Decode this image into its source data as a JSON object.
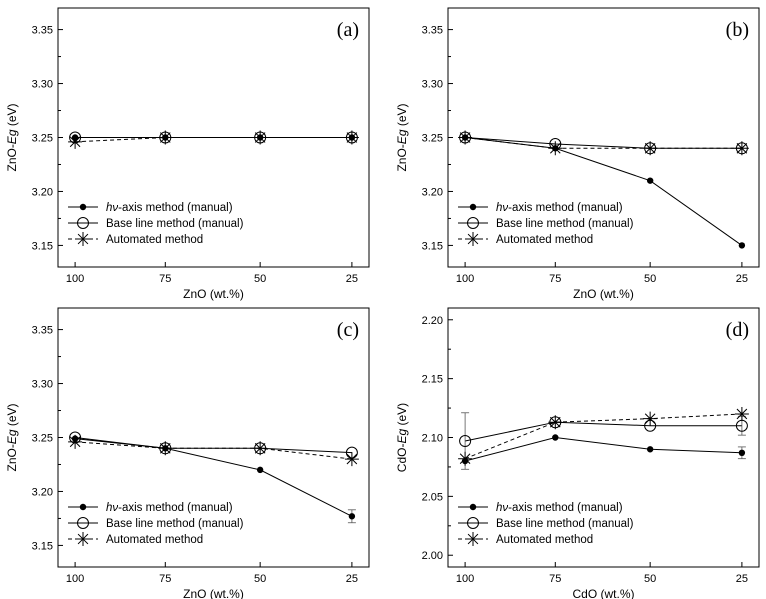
{
  "chart_data": [
    {
      "type": "line",
      "panel_label": "(a)",
      "x_categories": [
        "100",
        "75",
        "50",
        "25"
      ],
      "xlabel": "ZnO (wt.%)",
      "ylabel_prefix": "ZnO-",
      "ylabel_italic": "Eg",
      "ylabel_suffix": " (eV)",
      "ylim": [
        3.13,
        3.37
      ],
      "yticks": [
        "3.15",
        "3.20",
        "3.25",
        "3.30",
        "3.35"
      ],
      "series": [
        {
          "name": "hv-axis method (manual)",
          "values": [
            3.25,
            3.25,
            3.25,
            3.25
          ],
          "err": [
            0,
            0,
            0,
            0
          ]
        },
        {
          "name": "Base line method (manual)",
          "values": [
            3.25,
            3.25,
            3.25,
            3.25
          ],
          "err": [
            0,
            0,
            0,
            0
          ]
        },
        {
          "name": "Automated method",
          "values": [
            3.246,
            3.25,
            3.25,
            3.25
          ],
          "err": [
            0,
            0,
            0,
            0
          ]
        }
      ]
    },
    {
      "type": "line",
      "panel_label": "(b)",
      "x_categories": [
        "100",
        "75",
        "50",
        "25"
      ],
      "xlabel": "ZnO (wt.%)",
      "ylabel_prefix": "ZnO-",
      "ylabel_italic": "Eg",
      "ylabel_suffix": " (eV)",
      "ylim": [
        3.13,
        3.37
      ],
      "yticks": [
        "3.15",
        "3.20",
        "3.25",
        "3.30",
        "3.35"
      ],
      "series": [
        {
          "name": "hv-axis method (manual)",
          "values": [
            3.25,
            3.24,
            3.21,
            3.15
          ],
          "err": [
            0,
            0,
            0,
            0
          ]
        },
        {
          "name": "Base line method (manual)",
          "values": [
            3.25,
            3.244,
            3.24,
            3.24
          ],
          "err": [
            0,
            0,
            0,
            0
          ]
        },
        {
          "name": "Automated method",
          "values": [
            3.25,
            3.24,
            3.24,
            3.24
          ],
          "err": [
            0,
            0,
            0,
            0
          ]
        }
      ]
    },
    {
      "type": "line",
      "panel_label": "(c)",
      "x_categories": [
        "100",
        "75",
        "50",
        "25"
      ],
      "xlabel": "ZnO (wt.%)",
      "ylabel_prefix": "ZnO-",
      "ylabel_italic": "Eg",
      "ylabel_suffix": " (eV)",
      "ylim": [
        3.13,
        3.37
      ],
      "yticks": [
        "3.15",
        "3.20",
        "3.25",
        "3.30",
        "3.35"
      ],
      "series": [
        {
          "name": "hv-axis method (manual)",
          "values": [
            3.249,
            3.24,
            3.22,
            3.177
          ],
          "err": [
            0,
            0,
            0,
            0.006
          ]
        },
        {
          "name": "Base line method (manual)",
          "values": [
            3.25,
            3.24,
            3.24,
            3.236
          ],
          "err": [
            0,
            0,
            0,
            0
          ]
        },
        {
          "name": "Automated method",
          "values": [
            3.246,
            3.24,
            3.24,
            3.23
          ],
          "err": [
            0,
            0,
            0,
            0
          ]
        }
      ]
    },
    {
      "type": "line",
      "panel_label": "(d)",
      "x_categories": [
        "100",
        "75",
        "50",
        "25"
      ],
      "xlabel": "CdO (wt.%)",
      "ylabel_prefix": "CdO-",
      "ylabel_italic": "Eg",
      "ylabel_suffix": " (eV)",
      "ylim": [
        1.99,
        2.21
      ],
      "yticks": [
        "2.00",
        "2.05",
        "2.10",
        "2.15",
        "2.20"
      ],
      "series": [
        {
          "name": "hv-axis method (manual)",
          "values": [
            2.08,
            2.1,
            2.09,
            2.087
          ],
          "err": [
            0,
            0,
            0,
            0.005
          ]
        },
        {
          "name": "Base line method (manual)",
          "values": [
            2.097,
            2.113,
            2.11,
            2.11
          ],
          "err": [
            0.024,
            0,
            0,
            0.008
          ]
        },
        {
          "name": "Automated method",
          "values": [
            2.082,
            2.113,
            2.116,
            2.12
          ],
          "err": [
            0,
            0,
            0,
            0
          ]
        }
      ]
    }
  ],
  "legend": {
    "entry1_italic": "hν",
    "entry1_rest": "-axis method (manual)",
    "entry2": "Base line method (manual)",
    "entry3": "Automated method"
  }
}
